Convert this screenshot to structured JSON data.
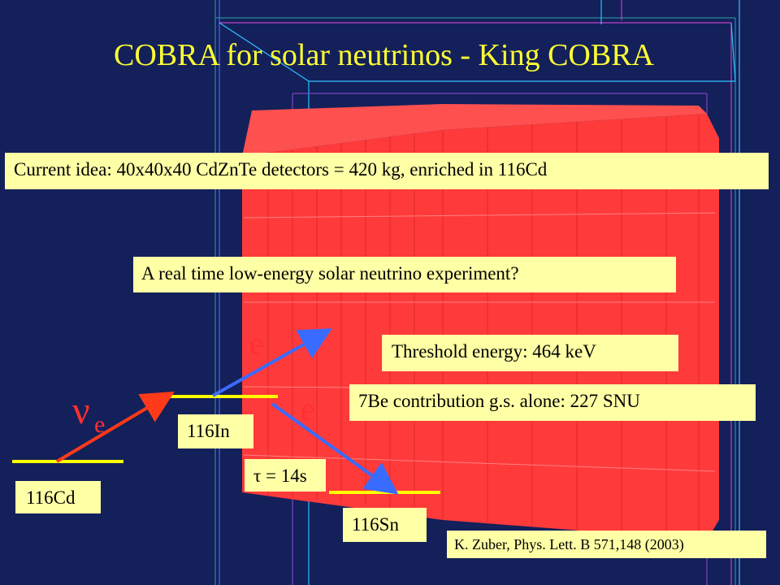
{
  "title": "COBRA for solar neutrinos - King COBRA",
  "boxes": {
    "current_idea": "Current idea: 40x40x40 CdZnTe detectors = 420 kg, enriched in 116Cd",
    "real_time": "A real time low-energy solar neutrino experiment?",
    "threshold": "Threshold energy: 464 keV",
    "be7": "7Be contribution g.s. alone: 227 SNU",
    "in116": "116In",
    "tau": "τ = 14s",
    "cd116": "116Cd",
    "sn116": "116Sn",
    "reference": "K. Zuber, Phys. Lett. B 571,148 (2003)"
  },
  "symbols": {
    "electron_upper": "e",
    "electron_lower": "e",
    "neutrino": "ν",
    "neutrino_sub": "e"
  },
  "colors": {
    "background": "#13205a",
    "title": "#ffff33",
    "detector": "#ff3a3a",
    "box": "#ffffa6",
    "level_line": "#ffff00",
    "electron_arrow": "#3a6bff",
    "neutrino_arrow": "#ff3a1a"
  }
}
